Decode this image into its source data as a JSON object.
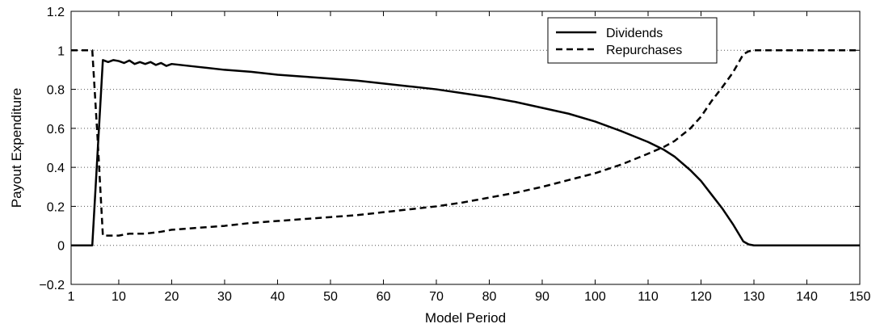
{
  "chart_data": {
    "type": "line",
    "title": "",
    "xlabel": "Model Period",
    "ylabel": "Payout Expenditure",
    "xlim": [
      1,
      150
    ],
    "ylim": [
      -0.2,
      1.2
    ],
    "x_ticks": [
      1,
      10,
      20,
      30,
      40,
      50,
      60,
      70,
      80,
      90,
      100,
      110,
      120,
      130,
      140,
      150
    ],
    "y_ticks": [
      -0.2,
      0,
      0.2,
      0.4,
      0.6,
      0.8,
      1,
      1.2
    ],
    "x_tick_labels": [
      "1",
      "10",
      "20",
      "30",
      "40",
      "50",
      "60",
      "70",
      "80",
      "90",
      "100",
      "110",
      "120",
      "130",
      "140",
      "150"
    ],
    "y_tick_labels": [
      "−0.2",
      "0",
      "0.2",
      "0.4",
      "0.6",
      "0.8",
      "1",
      "1.2"
    ],
    "grid": "horizontal dotted",
    "legend_position": "top-right",
    "series": [
      {
        "name": "Dividends",
        "style": "solid",
        "color": "#000000",
        "x": [
          1,
          5,
          7,
          8,
          9,
          10,
          11,
          12,
          13,
          14,
          15,
          16,
          17,
          18,
          19,
          20,
          25,
          30,
          35,
          40,
          45,
          50,
          55,
          60,
          65,
          70,
          75,
          80,
          85,
          90,
          95,
          100,
          105,
          110,
          113,
          115,
          118,
          120,
          122,
          124,
          126,
          128,
          129,
          130,
          140,
          150
        ],
        "y": [
          0,
          0,
          0.95,
          0.94,
          0.95,
          0.945,
          0.935,
          0.948,
          0.93,
          0.94,
          0.93,
          0.94,
          0.925,
          0.935,
          0.92,
          0.93,
          0.915,
          0.9,
          0.89,
          0.875,
          0.865,
          0.855,
          0.845,
          0.83,
          0.815,
          0.8,
          0.78,
          0.76,
          0.735,
          0.705,
          0.675,
          0.635,
          0.585,
          0.53,
          0.49,
          0.455,
          0.385,
          0.33,
          0.26,
          0.19,
          0.11,
          0.02,
          0.005,
          0,
          0,
          0
        ]
      },
      {
        "name": "Repurchases",
        "style": "dashed",
        "color": "#000000",
        "x": [
          1,
          5,
          6,
          7,
          8,
          10,
          12,
          15,
          18,
          20,
          25,
          30,
          35,
          40,
          45,
          50,
          55,
          60,
          65,
          70,
          75,
          80,
          85,
          90,
          95,
          100,
          105,
          110,
          113,
          115,
          118,
          120,
          122,
          124,
          126,
          128,
          129,
          130,
          140,
          150
        ],
        "y": [
          1,
          1,
          0.55,
          0.05,
          0.05,
          0.05,
          0.06,
          0.06,
          0.07,
          0.08,
          0.09,
          0.1,
          0.115,
          0.125,
          0.135,
          0.145,
          0.155,
          0.17,
          0.185,
          0.2,
          0.22,
          0.245,
          0.27,
          0.3,
          0.335,
          0.37,
          0.415,
          0.47,
          0.505,
          0.535,
          0.6,
          0.66,
          0.74,
          0.81,
          0.885,
          0.98,
          0.995,
          1,
          1,
          1
        ]
      }
    ]
  }
}
